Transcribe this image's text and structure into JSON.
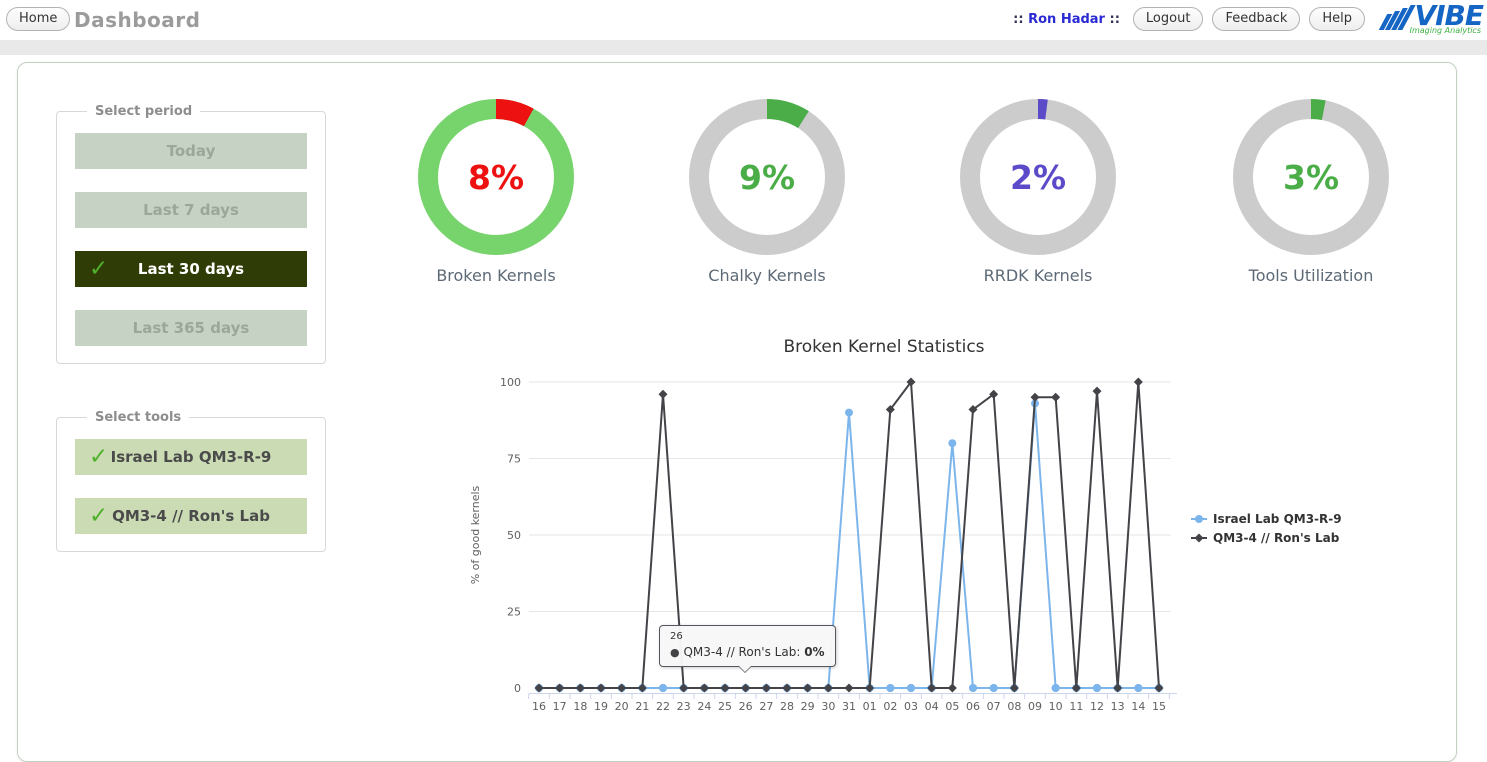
{
  "header": {
    "home_label": "Home",
    "title": "Dashboard",
    "user_prefix": "::",
    "user_name": "Ron Hadar",
    "user_suffix": "::",
    "logout_label": "Logout",
    "feedback_label": "Feedback",
    "help_label": "Help",
    "logo_text": "VIBE",
    "logo_subtitle": "Imaging Analytics",
    "logo_color": "#1465c4",
    "logo_subtitle_color": "#3cb043"
  },
  "period_panel": {
    "legend": "Select period",
    "check_glyph": "✓",
    "options": [
      {
        "label": "Today",
        "selected": false
      },
      {
        "label": "Last 7 days",
        "selected": false
      },
      {
        "label": "Last 30 days",
        "selected": true
      },
      {
        "label": "Last 365 days",
        "selected": false
      }
    ]
  },
  "tools_panel": {
    "legend": "Select tools",
    "check_glyph": "✓",
    "options": [
      {
        "label": "Israel Lab QM3-R-9",
        "selected": true
      },
      {
        "label": "QM3-4 // Ron's Lab",
        "selected": true
      }
    ]
  },
  "donuts": [
    {
      "value_label": "8%",
      "percent": 8,
      "label": "Broken Kernels",
      "ring_color": "#77d36c",
      "slice_color": "#ee1111",
      "text_color": "#ee1111"
    },
    {
      "value_label": "9%",
      "percent": 9,
      "label": "Chalky Kernels",
      "ring_color": "#cccccc",
      "slice_color": "#4aad47",
      "text_color": "#4aad47"
    },
    {
      "value_label": "2%",
      "percent": 2,
      "label": "RRDK Kernels",
      "ring_color": "#cccccc",
      "slice_color": "#5b4bc9",
      "text_color": "#5b4bc9"
    },
    {
      "value_label": "3%",
      "percent": 3,
      "label": "Tools Utilization",
      "ring_color": "#cccccc",
      "slice_color": "#4aad47",
      "text_color": "#4aad47"
    }
  ],
  "chart_data": {
    "type": "line",
    "title": "Broken Kernel Statistics",
    "xlabel": "",
    "ylabel": "% of good kernels",
    "ylim": [
      0,
      100
    ],
    "yticks": [
      0,
      25,
      50,
      75,
      100
    ],
    "grid": true,
    "legend_position": "right",
    "categories": [
      "16",
      "17",
      "18",
      "19",
      "20",
      "21",
      "22",
      "23",
      "24",
      "25",
      "26",
      "27",
      "28",
      "29",
      "30",
      "31",
      "01",
      "02",
      "03",
      "04",
      "05",
      "06",
      "07",
      "08",
      "09",
      "10",
      "11",
      "12",
      "13",
      "14",
      "15"
    ],
    "series": [
      {
        "name": "Israel Lab QM3-R-9",
        "color": "#7cb5ec",
        "marker": "circle",
        "values": [
          0,
          0,
          0,
          0,
          0,
          0,
          0,
          0,
          0,
          0,
          0,
          0,
          0,
          0,
          0,
          90,
          0,
          0,
          0,
          0,
          80,
          0,
          0,
          0,
          93,
          0,
          0,
          0,
          0,
          0,
          0
        ]
      },
      {
        "name": "QM3-4 // Ron's Lab",
        "color": "#434348",
        "marker": "diamond",
        "values": [
          0,
          0,
          0,
          0,
          0,
          0,
          96,
          0,
          0,
          0,
          0,
          0,
          0,
          0,
          0,
          0,
          0,
          91,
          100,
          0,
          0,
          91,
          96,
          0,
          95,
          95,
          0,
          97,
          0,
          100,
          0
        ]
      }
    ],
    "marker_overdraw_indices": [
      6,
      17,
      18,
      21,
      22,
      25,
      27,
      29
    ],
    "axis_label_color": "#606060",
    "grid_color": "#e6e6e6",
    "axis_line_color": "#ccd6eb",
    "tooltip": {
      "header": "26",
      "bullet": "●",
      "series": "QM3-4 // Ron's Lab",
      "value": "0%"
    }
  }
}
